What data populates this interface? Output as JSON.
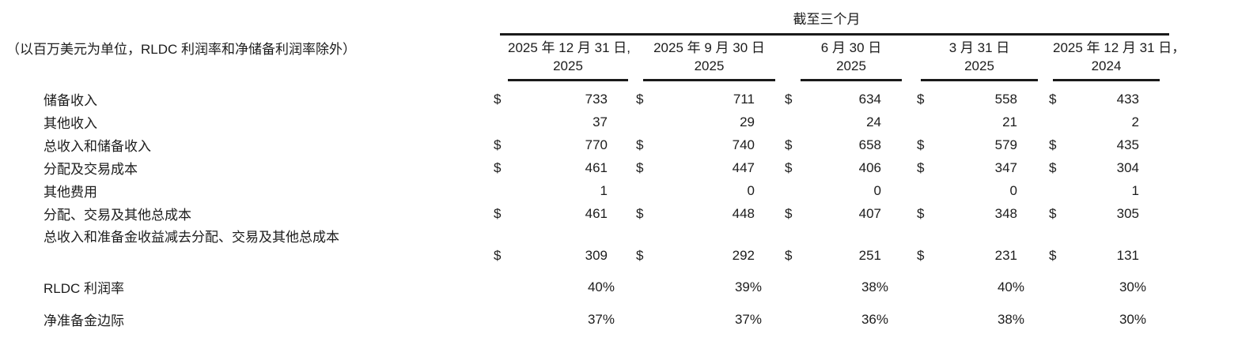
{
  "colors": {
    "background": "#ffffff",
    "text": "#1c1c1c",
    "rule": "#1a1a1a"
  },
  "table": {
    "caption": "截至三个月",
    "unit_note": "（以百万美元为单位，RLDC 利润率和净储备利润率除外）",
    "currency_symbol": "$",
    "columns": [
      {
        "line1": "2025 年 12 月 31 日,",
        "line2": "2025"
      },
      {
        "line1": "2025 年 9 月 30 日",
        "line2": "2025"
      },
      {
        "line1": "6 月 30 日",
        "line2": "2025"
      },
      {
        "line1": "3 月 31 日",
        "line2": "2025"
      },
      {
        "line1": "2025 年 12 月 31 日，",
        "line2": "2024"
      }
    ],
    "rows": [
      {
        "label": "储备收入",
        "dollar": true,
        "values": [
          "733",
          "711",
          "634",
          "558",
          "433"
        ]
      },
      {
        "label": "其他收入",
        "dollar": false,
        "values": [
          "37",
          "29",
          "24",
          "21",
          "2"
        ]
      },
      {
        "label": "总收入和储备收入",
        "dollar": true,
        "values": [
          "770",
          "740",
          "658",
          "579",
          "435"
        ]
      },
      {
        "label": "分配及交易成本",
        "dollar": true,
        "values": [
          "461",
          "447",
          "406",
          "347",
          "304"
        ]
      },
      {
        "label": "其他费用",
        "dollar": false,
        "values": [
          "1",
          "0",
          "0",
          "0",
          "1"
        ]
      },
      {
        "label": "分配、交易及其他总成本",
        "dollar": true,
        "values": [
          "461",
          "448",
          "407",
          "348",
          "305"
        ]
      },
      {
        "label": "总收入和准备金收益减去分配、交易及其他总成本",
        "dollar": true,
        "wrap": true,
        "values": [
          "309",
          "292",
          "251",
          "231",
          "131"
        ]
      },
      {
        "label": "RLDC 利润率",
        "dollar": false,
        "spaced": true,
        "values": [
          "40%",
          "39%",
          "38%",
          "40%",
          "30%"
        ]
      },
      {
        "label": "净准备金边际",
        "dollar": false,
        "spaced": true,
        "values": [
          "37%",
          "37%",
          "36%",
          "38%",
          "30%"
        ]
      }
    ]
  }
}
